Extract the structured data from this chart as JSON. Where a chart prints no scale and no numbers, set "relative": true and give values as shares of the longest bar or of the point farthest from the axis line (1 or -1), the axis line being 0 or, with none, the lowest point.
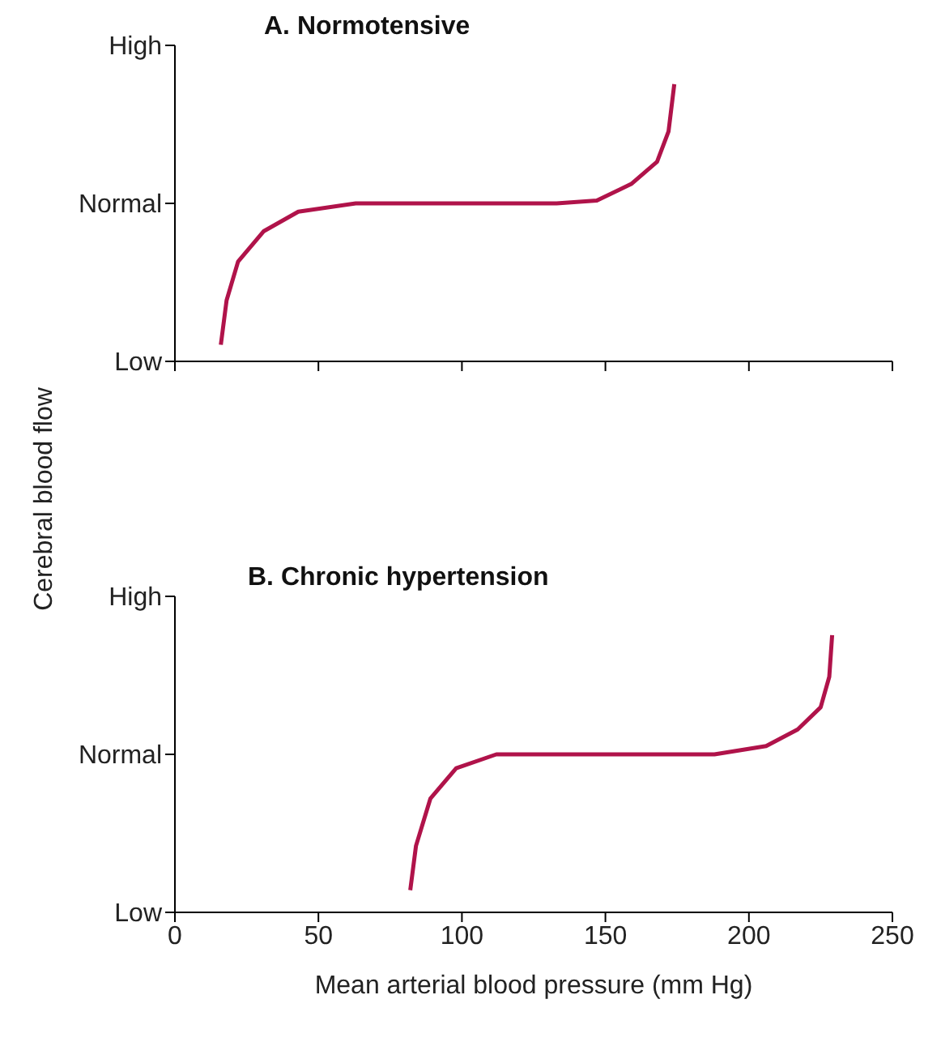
{
  "chart_data": [
    {
      "type": "line",
      "title": "A. Normotensive",
      "ylabel": "Cerebral blood flow",
      "relative": true,
      "x": [
        16,
        18,
        22,
        31,
        43,
        63,
        133,
        147,
        159,
        168,
        172,
        174
      ],
      "series": [
        {
          "color": "#b0134a",
          "values": [
            0.06,
            0.22,
            0.36,
            0.47,
            0.54,
            0.57,
            0.57,
            0.58,
            0.64,
            0.72,
            0.83,
            1
          ]
        }
      ],
      "annotations": [
        "High",
        "Normal",
        "Low"
      ],
      "tick_labels": false,
      "xlim": [
        0,
        250
      ],
      "xticks": [
        0,
        50,
        100,
        150,
        200,
        250
      ],
      "grid": false,
      "legend": false,
      "marker": "none",
      "line_style": "solid"
    },
    {
      "type": "line",
      "title": "B. Chronic hypertension",
      "xlabel": "Mean arterial blood pressure (mm Hg)",
      "relative": true,
      "x": [
        82,
        84,
        89,
        98,
        112,
        127,
        188,
        206,
        217,
        225,
        228,
        229
      ],
      "series": [
        {
          "color": "#b0134a",
          "values": [
            0.08,
            0.24,
            0.41,
            0.52,
            0.57,
            0.57,
            0.57,
            0.6,
            0.66,
            0.74,
            0.85,
            1
          ]
        }
      ],
      "annotations": [
        "High",
        "Normal",
        "Low"
      ],
      "xlim": [
        0,
        250
      ],
      "xticks": [
        0,
        50,
        100,
        150,
        200,
        250
      ],
      "grid": false,
      "legend": false,
      "marker": "none",
      "line_style": "solid"
    }
  ]
}
